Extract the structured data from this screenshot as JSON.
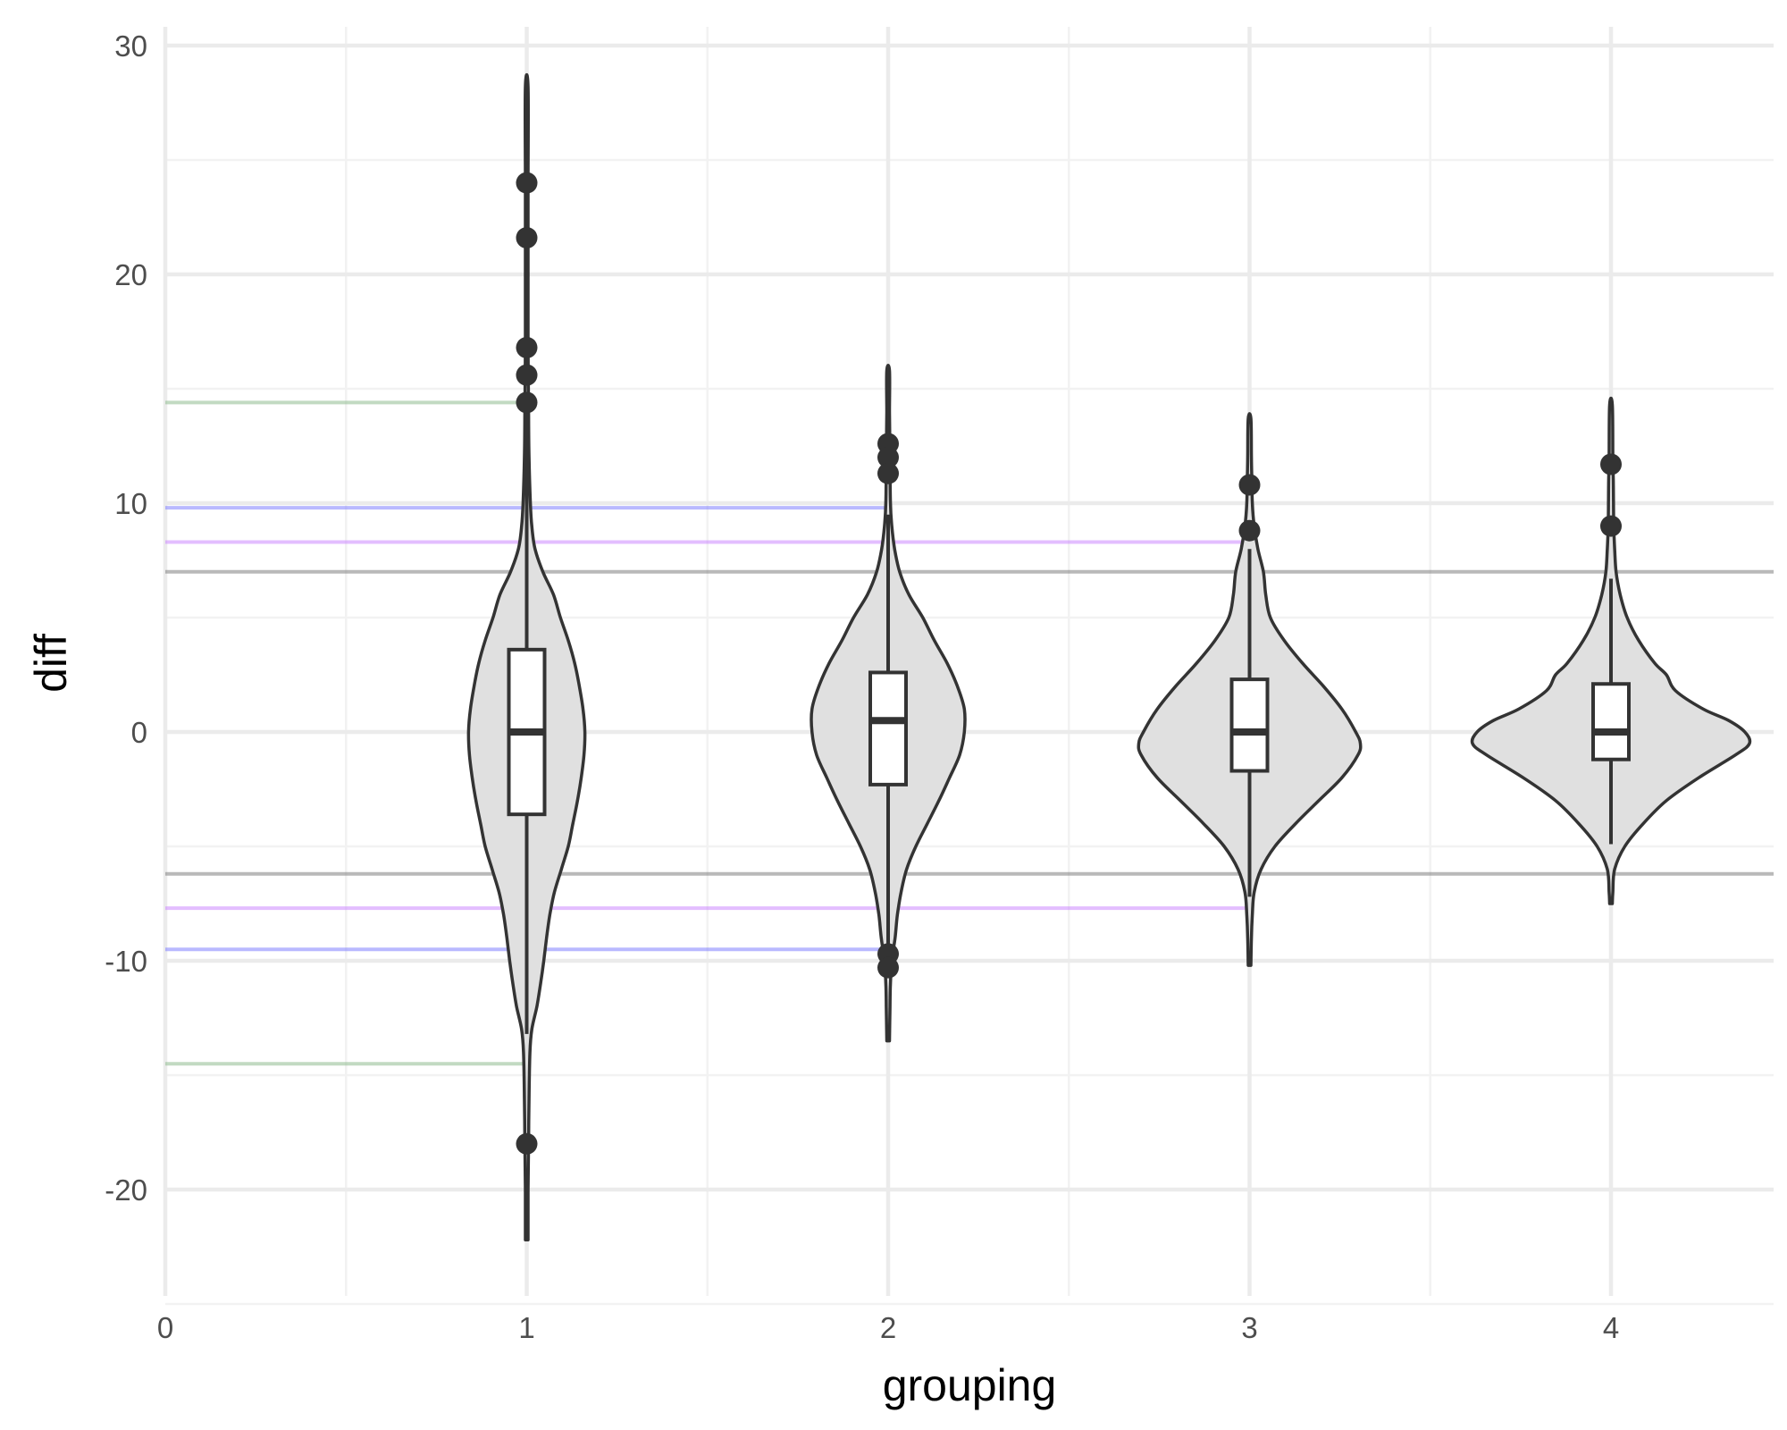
{
  "chart_data": {
    "type": "violin",
    "xlabel": "grouping",
    "ylabel": "diff",
    "xlim": [
      0,
      4.45
    ],
    "ylim": [
      -24.5,
      30.8
    ],
    "x_ticks": [
      0,
      1,
      2,
      3,
      4
    ],
    "y_ticks": [
      -20,
      -10,
      0,
      10,
      20,
      30
    ],
    "grid": true,
    "reference_lines": [
      {
        "group": 1,
        "color": "#8fbc8f",
        "y_upper": 14.4,
        "y_lower": -14.5
      },
      {
        "group": 2,
        "color": "#8080ff",
        "y_upper": 9.8,
        "y_lower": -9.5
      },
      {
        "group": 3,
        "color": "#cc88ff",
        "y_upper": 8.3,
        "y_lower": -7.7
      },
      {
        "group": 4,
        "color": "#808080",
        "y_upper": 7.0,
        "y_lower": -6.2
      }
    ],
    "groups": [
      {
        "x": 1,
        "min": -22.2,
        "max": 28.2,
        "density": [
          [
            -22.2,
            0.003
          ],
          [
            -20,
            0.003
          ],
          [
            -18,
            0.004
          ],
          [
            -16,
            0.005
          ],
          [
            -14,
            0.007
          ],
          [
            -13,
            0.011
          ],
          [
            -12,
            0.022
          ],
          [
            -11,
            0.03
          ],
          [
            -10,
            0.037
          ],
          [
            -9,
            0.043
          ],
          [
            -8,
            0.05
          ],
          [
            -7,
            0.06
          ],
          [
            -6,
            0.075
          ],
          [
            -5,
            0.09
          ],
          [
            -4,
            0.1
          ],
          [
            -3,
            0.11
          ],
          [
            -2,
            0.118
          ],
          [
            -1,
            0.124
          ],
          [
            0,
            0.126
          ],
          [
            1,
            0.122
          ],
          [
            2,
            0.114
          ],
          [
            3,
            0.104
          ],
          [
            4,
            0.09
          ],
          [
            5,
            0.073
          ],
          [
            6,
            0.058
          ],
          [
            7,
            0.035
          ],
          [
            8,
            0.018
          ],
          [
            9,
            0.011
          ],
          [
            10,
            0.008
          ],
          [
            12,
            0.005
          ],
          [
            14,
            0.004
          ],
          [
            17,
            0.003
          ],
          [
            20,
            0.003
          ],
          [
            24,
            0.003
          ],
          [
            28.2,
            0.003
          ]
        ],
        "box": {
          "q1": -3.6,
          "median": 0.0,
          "q3": 3.6,
          "whisker_low": -13.2,
          "whisker_high": 14.2
        },
        "outliers": [
          24.0,
          21.6,
          16.8,
          15.6,
          14.4,
          -18.0
        ]
      },
      {
        "x": 2,
        "min": -13.5,
        "max": 15.8,
        "density": [
          [
            -13.5,
            0.003
          ],
          [
            -12,
            0.004
          ],
          [
            -11,
            0.005
          ],
          [
            -10,
            0.008
          ],
          [
            -9,
            0.015
          ],
          [
            -8,
            0.02
          ],
          [
            -7,
            0.028
          ],
          [
            -6,
            0.04
          ],
          [
            -5,
            0.06
          ],
          [
            -4,
            0.085
          ],
          [
            -3,
            0.11
          ],
          [
            -2,
            0.133
          ],
          [
            -1,
            0.155
          ],
          [
            0,
            0.165
          ],
          [
            1,
            0.165
          ],
          [
            2,
            0.15
          ],
          [
            3,
            0.128
          ],
          [
            4,
            0.1
          ],
          [
            5,
            0.075
          ],
          [
            6,
            0.045
          ],
          [
            7,
            0.025
          ],
          [
            8,
            0.014
          ],
          [
            9,
            0.008
          ],
          [
            10,
            0.005
          ],
          [
            12,
            0.004
          ],
          [
            14,
            0.003
          ],
          [
            15.8,
            0.003
          ]
        ],
        "box": {
          "q1": -2.3,
          "median": 0.5,
          "q3": 2.6,
          "whisker_low": -9.3,
          "whisker_high": 9.5
        },
        "outliers": [
          12.6,
          12.0,
          11.3,
          -9.7,
          -10.3
        ]
      },
      {
        "x": 3,
        "min": -10.2,
        "max": 13.7,
        "density": [
          [
            -10.2,
            0.003
          ],
          [
            -9,
            0.004
          ],
          [
            -8,
            0.006
          ],
          [
            -7,
            0.01
          ],
          [
            -6,
            0.025
          ],
          [
            -5,
            0.055
          ],
          [
            -4,
            0.1
          ],
          [
            -3,
            0.15
          ],
          [
            -2,
            0.2
          ],
          [
            -1,
            0.235
          ],
          [
            -0.5,
            0.24
          ],
          [
            0,
            0.23
          ],
          [
            1,
            0.2
          ],
          [
            2,
            0.16
          ],
          [
            3,
            0.115
          ],
          [
            4,
            0.075
          ],
          [
            5,
            0.045
          ],
          [
            6,
            0.035
          ],
          [
            7,
            0.03
          ],
          [
            8,
            0.018
          ],
          [
            9,
            0.01
          ],
          [
            10,
            0.006
          ],
          [
            11,
            0.005
          ],
          [
            12,
            0.004
          ],
          [
            13.7,
            0.003
          ]
        ],
        "box": {
          "q1": -1.7,
          "median": 0.0,
          "q3": 2.3,
          "whisker_low": -7.2,
          "whisker_high": 8.0
        },
        "outliers": [
          10.8,
          8.8
        ]
      },
      {
        "x": 4,
        "min": -7.5,
        "max": 14.3,
        "density": [
          [
            -7.5,
            0.003
          ],
          [
            -7,
            0.004
          ],
          [
            -6,
            0.008
          ],
          [
            -5,
            0.03
          ],
          [
            -4,
            0.07
          ],
          [
            -3,
            0.12
          ],
          [
            -2,
            0.19
          ],
          [
            -1,
            0.27
          ],
          [
            -0.5,
            0.3
          ],
          [
            0,
            0.29
          ],
          [
            0.5,
            0.255
          ],
          [
            1,
            0.2
          ],
          [
            1.8,
            0.14
          ],
          [
            2.5,
            0.12
          ],
          [
            3,
            0.095
          ],
          [
            4,
            0.06
          ],
          [
            5,
            0.035
          ],
          [
            6,
            0.02
          ],
          [
            7,
            0.011
          ],
          [
            8,
            0.008
          ],
          [
            9,
            0.006
          ],
          [
            11,
            0.005
          ],
          [
            12,
            0.004
          ],
          [
            14.3,
            0.003
          ]
        ],
        "box": {
          "q1": -1.2,
          "median": 0.0,
          "q3": 2.1,
          "whisker_low": -4.9,
          "whisker_high": 6.7
        },
        "outliers": [
          11.7,
          9.0
        ]
      }
    ]
  }
}
